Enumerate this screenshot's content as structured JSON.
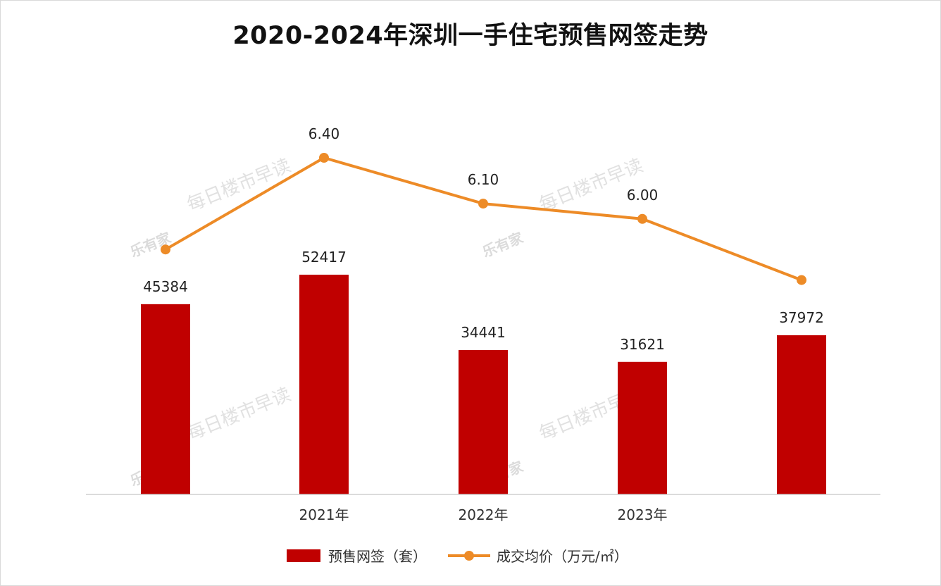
{
  "title": "2020-2024年深圳一手住宅预售网签走势",
  "watermarks": [
    "每日楼市早读",
    "乐有家"
  ],
  "chart_data": {
    "type": "bar",
    "categories": [
      "",
      "2021年",
      "2022年",
      "2023年",
      ""
    ],
    "series": [
      {
        "name": "预售网签（套）",
        "type": "bar",
        "color": "#c00000",
        "values": [
          45384,
          52417,
          34441,
          31621,
          37972
        ],
        "labels": [
          "45384",
          "52417",
          "34441",
          "31621",
          "37972"
        ]
      },
      {
        "name": "成交均价（万元/㎡）",
        "type": "line",
        "color": "#ed8b27",
        "values": [
          5.8,
          6.4,
          6.1,
          6.0,
          5.6
        ],
        "labels": [
          "",
          "6.40",
          "6.10",
          "6.00",
          ""
        ]
      }
    ],
    "legend": "bottom",
    "grid": false
  }
}
